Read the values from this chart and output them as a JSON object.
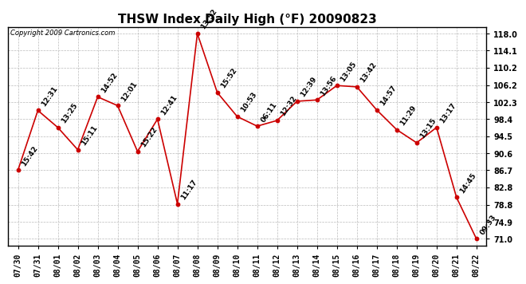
{
  "title": "THSW Index Daily High (°F) 20090823",
  "copyright": "Copyright 2009 Cartronics.com",
  "x_labels": [
    "07/30",
    "07/31",
    "08/01",
    "08/02",
    "08/03",
    "08/04",
    "08/05",
    "08/06",
    "08/07",
    "08/08",
    "08/09",
    "08/10",
    "08/11",
    "08/12",
    "08/13",
    "08/14",
    "08/15",
    "08/16",
    "08/17",
    "08/18",
    "08/19",
    "08/20",
    "08/21",
    "08/22"
  ],
  "y_values": [
    86.7,
    100.4,
    96.5,
    91.4,
    103.5,
    101.5,
    91.0,
    98.4,
    79.0,
    118.0,
    104.5,
    99.0,
    96.8,
    98.1,
    102.5,
    102.8,
    106.1,
    105.8,
    100.5,
    96.0,
    93.0,
    96.5,
    80.5,
    71.0
  ],
  "time_labels": [
    "15:42",
    "12:31",
    "13:25",
    "15:11",
    "14:52",
    "12:01",
    "15:22",
    "12:41",
    "11:17",
    "13:52",
    "15:52",
    "10:53",
    "06:11",
    "12:32",
    "12:39",
    "13:56",
    "13:05",
    "13:42",
    "14:57",
    "11:29",
    "13:15",
    "13:17",
    "14:45",
    "09:33"
  ],
  "y_ticks": [
    71.0,
    74.9,
    78.8,
    82.8,
    86.7,
    90.6,
    94.5,
    98.4,
    102.3,
    106.2,
    110.2,
    114.1,
    118.0
  ],
  "line_color": "#cc0000",
  "dot_color": "#cc0000",
  "bg_color": "#ffffff",
  "grid_color": "#bbbbbb",
  "title_fontsize": 11,
  "tick_fontsize": 7,
  "annotation_fontsize": 6.5
}
